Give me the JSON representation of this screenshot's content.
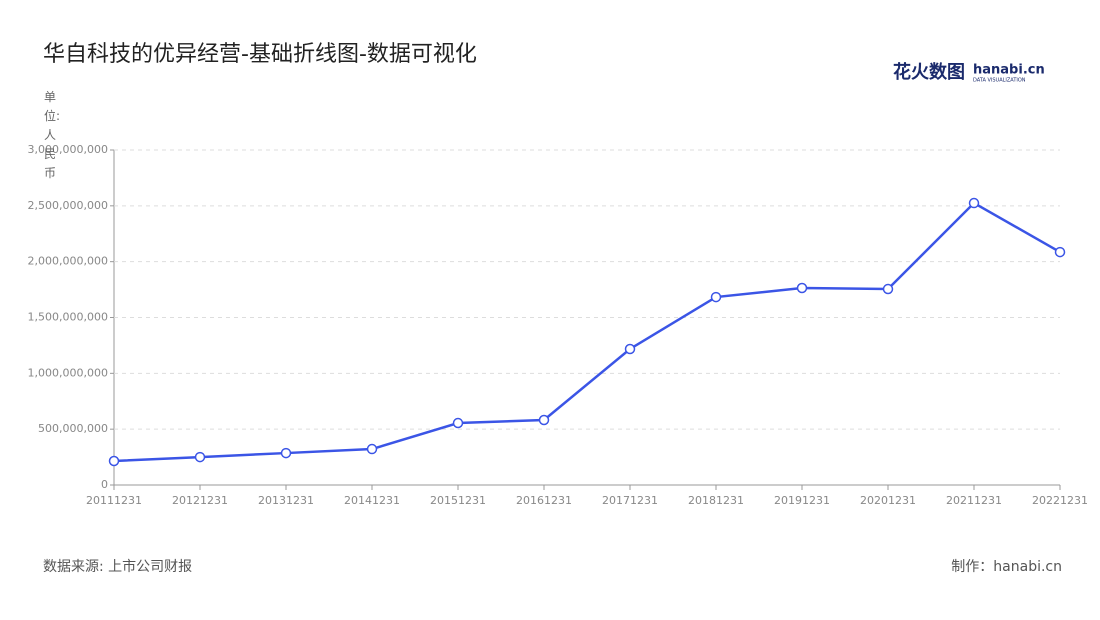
{
  "chart_data": {
    "type": "line",
    "title": "华自科技的优异经营-基础折线图-数据可视化",
    "y_label": "单位:人民币",
    "categories": [
      "20111231",
      "20121231",
      "20131231",
      "20141231",
      "20151231",
      "20161231",
      "20171231",
      "20181231",
      "20191231",
      "20201231",
      "20211231",
      "20221231"
    ],
    "series": [
      {
        "name": "华自科技",
        "color": "#3b55e6",
        "values": [
          215000000,
          250000000,
          286000000,
          322000000,
          555000000,
          582000000,
          1218000000,
          1683000000,
          1764000000,
          1755000000,
          2525000000,
          2086000000
        ]
      }
    ],
    "ylim": [
      0,
      3000000000
    ],
    "yticks": [
      0,
      {
        "value": 500000000,
        "label": "500,000,000"
      },
      {
        "value": 1000000000,
        "label": "1,000,000,000"
      },
      {
        "value": 1500000000,
        "label": "1,500,000,000"
      },
      {
        "value": 2000000000,
        "label": "2,000,000,000"
      },
      {
        "value": 2500000000,
        "label": "2,500,000,000"
      },
      {
        "value": 3000000000,
        "label": "3,000,000,000"
      }
    ],
    "grid": true,
    "source": "数据来源: 上市公司财报",
    "credit": "制作：hanabi.cn",
    "logo": {
      "cn": "花火数图",
      "en": "hanabi.cn",
      "sub": "DATA VISUALIZATION"
    }
  }
}
